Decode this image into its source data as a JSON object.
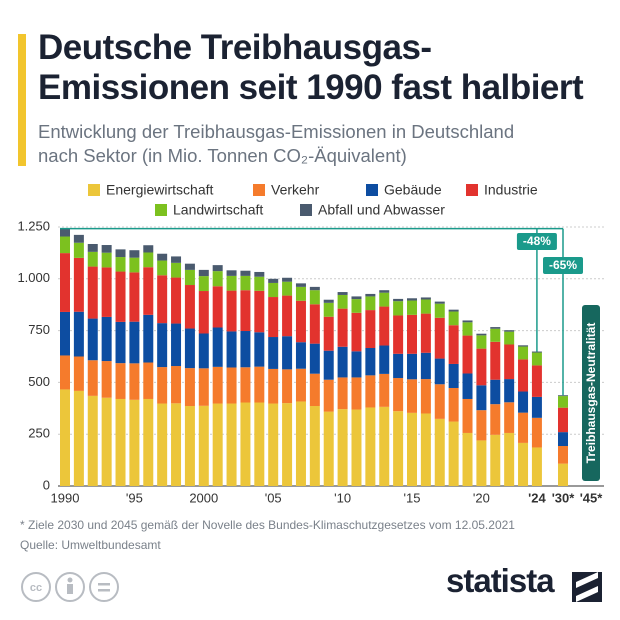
{
  "chart_data": {
    "type": "stacked-bar",
    "title": "Deutsche Treibhausgas-Emissionen seit 1990 fast halbiert",
    "subtitle": "Entwicklung der Treibhausgas-Emissionen in Deutschland nach Sektor (in Mio. Tonnen CO₂-Äquivalent)",
    "categories": [
      "1990",
      null,
      null,
      null,
      null,
      "'95",
      null,
      null,
      null,
      null,
      "2000",
      null,
      null,
      null,
      null,
      "'05",
      null,
      null,
      null,
      null,
      "'10",
      null,
      null,
      null,
      null,
      "'15",
      null,
      null,
      null,
      null,
      "'20",
      null,
      null,
      null,
      "'24",
      "'30*",
      "'45*"
    ],
    "series": [
      {
        "name": "Energiewirtschaft",
        "color": "#ecc63a",
        "values": [
          466,
          459,
          435,
          426,
          420,
          416,
          420,
          398,
          399,
          386,
          387,
          398,
          398,
          403,
          403,
          398,
          400,
          408,
          386,
          359,
          371,
          369,
          379,
          382,
          361,
          353,
          350,
          324,
          311,
          256,
          220,
          247,
          256,
          208,
          186,
          108,
          null
        ]
      },
      {
        "name": "Verkehr",
        "color": "#f57b2c",
        "values": [
          164,
          166,
          172,
          177,
          173,
          176,
          176,
          176,
          180,
          183,
          181,
          177,
          174,
          170,
          173,
          167,
          163,
          158,
          156,
          154,
          153,
          155,
          155,
          159,
          160,
          162,
          166,
          167,
          162,
          164,
          146,
          148,
          148,
          146,
          143,
          85,
          null
        ]
      },
      {
        "name": "Gebäude",
        "color": "#0d4da1",
        "values": [
          210,
          216,
          201,
          213,
          199,
          201,
          230,
          212,
          205,
          191,
          168,
          190,
          174,
          175,
          166,
          154,
          160,
          128,
          145,
          140,
          148,
          126,
          132,
          137,
          117,
          123,
          127,
          124,
          116,
          123,
          120,
          118,
          112,
          102,
          101,
          67,
          null
        ]
      },
      {
        "name": "Industrie",
        "color": "#e2332e",
        "values": [
          284,
          260,
          251,
          239,
          243,
          238,
          230,
          231,
          222,
          210,
          205,
          199,
          197,
          197,
          200,
          193,
          196,
          200,
          190,
          164,
          184,
          186,
          183,
          188,
          185,
          188,
          189,
          197,
          187,
          183,
          177,
          183,
          167,
          155,
          152,
          118,
          null
        ]
      },
      {
        "name": "Landwirtschaft",
        "color": "#7cc11f",
        "values": [
          80,
          73,
          71,
          71,
          70,
          71,
          71,
          71,
          71,
          73,
          72,
          73,
          71,
          69,
          68,
          68,
          67,
          67,
          68,
          67,
          66,
          66,
          66,
          67,
          69,
          69,
          68,
          68,
          66,
          64,
          64,
          63,
          62,
          62,
          62,
          56,
          null
        ]
      },
      {
        "name": "Abfall und Abwasser",
        "color": "#4a5a6e",
        "values": [
          38,
          38,
          38,
          37,
          37,
          36,
          35,
          33,
          31,
          30,
          30,
          29,
          27,
          25,
          23,
          20,
          19,
          17,
          16,
          15,
          14,
          13,
          12,
          12,
          11,
          11,
          10,
          10,
          9,
          9,
          8,
          8,
          7,
          6,
          5,
          4,
          null
        ]
      }
    ],
    "ylim": [
      0,
      1250
    ],
    "yticks": [
      0,
      250,
      500,
      750,
      {
        "value": 1000,
        "label": "1.000"
      },
      {
        "value": 1250,
        "label": "1.250"
      }
    ],
    "grid": true,
    "annotations": [
      "-48%",
      "-65%",
      "Treibhausgas-Neutralität"
    ],
    "footnote": "* Ziele 2030 und 2045 gemäß der Novelle des Bundes-Klimaschutzgesetzes vom 12.05.2021",
    "source": "Quelle: Umweltbundesamt",
    "brand": "statista"
  }
}
